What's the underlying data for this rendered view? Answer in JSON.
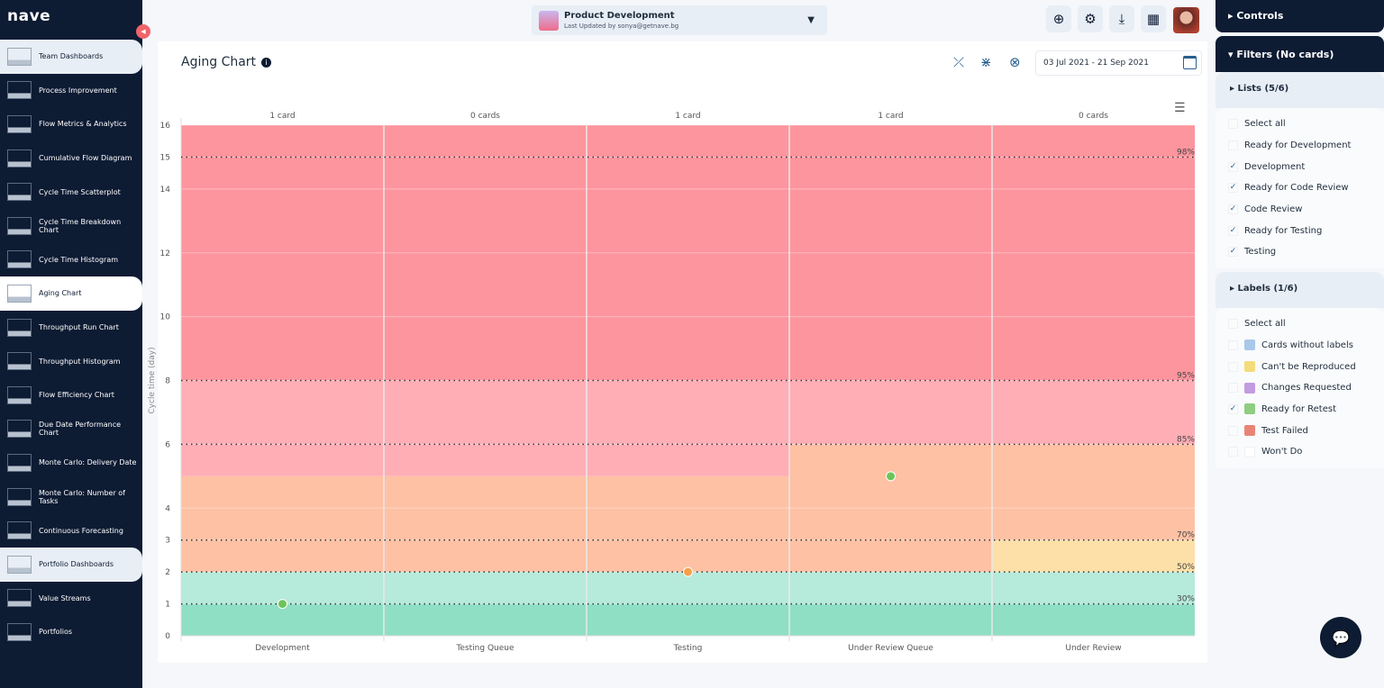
{
  "app": {
    "logo": "nave"
  },
  "sidebar": {
    "items": [
      {
        "label": "Team Dashboards",
        "kind": "section"
      },
      {
        "label": "Process Improvement"
      },
      {
        "label": "Flow Metrics & Analytics"
      },
      {
        "label": "Cumulative Flow Diagram"
      },
      {
        "label": "Cycle Time Scatterplot"
      },
      {
        "label": "Cycle Time Breakdown Chart"
      },
      {
        "label": "Cycle Time Histogram"
      },
      {
        "label": "Aging Chart",
        "kind": "active"
      },
      {
        "label": "Throughput Run Chart"
      },
      {
        "label": "Throughput Histogram"
      },
      {
        "label": "Flow Efficiency Chart"
      },
      {
        "label": "Due Date Performance Chart"
      },
      {
        "label": "Monte Carlo: Delivery Date"
      },
      {
        "label": "Monte Carlo: Number of Tasks"
      },
      {
        "label": "Continuous Forecasting"
      },
      {
        "label": "Portfolio Dashboards",
        "kind": "section"
      },
      {
        "label": "Value Streams"
      },
      {
        "label": "Portfolios"
      }
    ]
  },
  "topbar": {
    "board_title": "Product Development",
    "board_subtitle": "Last Updated by sonya@getnave.bg",
    "icons": [
      "plus-circle-icon",
      "gear-icon",
      "download-icon",
      "layout-icon"
    ]
  },
  "main": {
    "title": "Aging Chart",
    "date_range": "03 Jul 2021 - 21 Sep 2021"
  },
  "colors": {
    "red": "#fd959e",
    "pink": "#ffaeb6",
    "orange": "#fec1a4",
    "yellow": "#fde0a8",
    "light_green": "#b6eadb",
    "green": "#8fdfc5",
    "dot_green": "#6cc45a",
    "dot_orange": "#f5a04a"
  },
  "chart_data": {
    "type": "scatter",
    "ylabel": "Cycle time (day)",
    "ylim": [
      0,
      16
    ],
    "yticks": [
      0,
      1,
      2,
      3,
      4,
      6,
      8,
      10,
      12,
      14,
      15,
      16
    ],
    "categories": [
      "Development",
      "Testing Queue",
      "Testing",
      "Under Review Queue",
      "Under Review"
    ],
    "card_counts": [
      "1 card",
      "0 cards",
      "1 card",
      "1 card",
      "0 cards"
    ],
    "percentiles": [
      {
        "label": "30%",
        "value": 1
      },
      {
        "label": "50%",
        "value": 2
      },
      {
        "label": "70%",
        "value": 3
      },
      {
        "label": "85%",
        "value": 6
      },
      {
        "label": "95%",
        "value": 8
      },
      {
        "label": "98%",
        "value": 15
      }
    ],
    "zones": [
      [
        [
          0,
          1,
          "green"
        ],
        [
          1,
          2,
          "light_green"
        ],
        [
          2,
          5,
          "orange"
        ],
        [
          5,
          8,
          "pink"
        ],
        [
          8,
          16,
          "red"
        ]
      ],
      [
        [
          0,
          1,
          "green"
        ],
        [
          1,
          2,
          "light_green"
        ],
        [
          2,
          5,
          "orange"
        ],
        [
          5,
          8,
          "pink"
        ],
        [
          8,
          16,
          "red"
        ]
      ],
      [
        [
          0,
          1,
          "green"
        ],
        [
          1,
          2,
          "light_green"
        ],
        [
          2,
          5,
          "orange"
        ],
        [
          5,
          8,
          "pink"
        ],
        [
          8,
          16,
          "red"
        ]
      ],
      [
        [
          0,
          1,
          "green"
        ],
        [
          1,
          2,
          "light_green"
        ],
        [
          2,
          6,
          "orange"
        ],
        [
          6,
          8,
          "pink"
        ],
        [
          8,
          16,
          "red"
        ]
      ],
      [
        [
          0,
          1,
          "green"
        ],
        [
          1,
          2,
          "light_green"
        ],
        [
          2,
          3,
          "yellow"
        ],
        [
          3,
          6,
          "orange"
        ],
        [
          6,
          8,
          "pink"
        ],
        [
          8,
          16,
          "red"
        ]
      ]
    ],
    "points": [
      {
        "category": "Development",
        "y": 1,
        "color": "dot_green"
      },
      {
        "category": "Testing",
        "y": 2,
        "color": "dot_orange"
      },
      {
        "category": "Under Review Queue",
        "y": 5,
        "color": "dot_green"
      }
    ],
    "grid": true
  },
  "right": {
    "controls": "Controls",
    "filters": "Filters (No cards)",
    "lists_header": "Lists  (5/6)",
    "lists": [
      {
        "label": "Select all",
        "checked": false
      },
      {
        "label": "Ready for Development",
        "checked": false
      },
      {
        "label": "Development",
        "checked": true
      },
      {
        "label": "Ready for Code Review",
        "checked": true
      },
      {
        "label": "Code Review",
        "checked": true
      },
      {
        "label": "Ready for Testing",
        "checked": true
      },
      {
        "label": "Testing",
        "checked": true
      }
    ],
    "labels_header": "Labels  (1/6)",
    "labels": [
      {
        "label": "Select all",
        "checked": false
      },
      {
        "label": "Cards without labels",
        "checked": false,
        "color": "#a9c8ea"
      },
      {
        "label": "Can't be Reproduced",
        "checked": false,
        "color": "#f3dc7c"
      },
      {
        "label": "Changes Requested",
        "checked": false,
        "color": "#c39be0"
      },
      {
        "label": "Ready for Retest",
        "checked": true,
        "color": "#8fcd82"
      },
      {
        "label": "Test Failed",
        "checked": false,
        "color": "#e88476"
      },
      {
        "label": "Won't Do",
        "checked": false,
        "color": "#ffffff"
      }
    ]
  }
}
